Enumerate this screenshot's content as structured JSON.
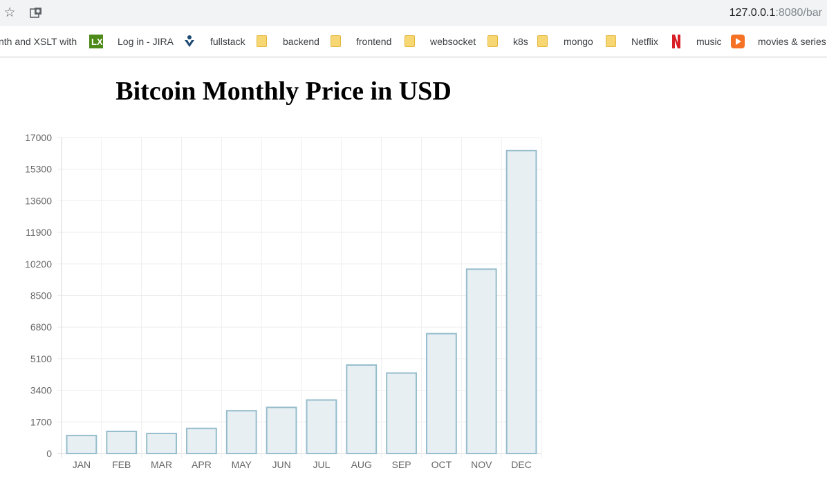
{
  "browser": {
    "url_host": "127.0.0.1",
    "url_rest": ":8080/bar",
    "icons": [
      "star-icon",
      "site-info-icon"
    ]
  },
  "bookmarks": [
    {
      "label": "nth and XSLT with",
      "icon": "none"
    },
    {
      "label": "Log in - JIRA",
      "icon": "lx-icon"
    },
    {
      "label": "fullstack",
      "icon": "jira-icon"
    },
    {
      "label": "backend",
      "icon": "folder-icon"
    },
    {
      "label": "frontend",
      "icon": "folder-icon"
    },
    {
      "label": "websocket",
      "icon": "folder-icon"
    },
    {
      "label": "k8s",
      "icon": "folder-icon"
    },
    {
      "label": "mongo",
      "icon": "folder-icon"
    },
    {
      "label": "Netflix",
      "icon": "folder-icon"
    },
    {
      "label": "music",
      "icon": "netflix-icon"
    },
    {
      "label": "movies & series",
      "icon": "music-icon"
    }
  ],
  "chart_data": {
    "type": "bar",
    "title": "Bitcoin Monthly Price in USD",
    "xlabel": "",
    "ylabel": "",
    "categories": [
      "JAN",
      "FEB",
      "MAR",
      "APR",
      "MAY",
      "JUN",
      "JUL",
      "AUG",
      "SEP",
      "OCT",
      "NOV",
      "DEC"
    ],
    "values": [
      970,
      1190,
      1080,
      1350,
      2300,
      2480,
      2880,
      4760,
      4330,
      6450,
      9920,
      16300
    ],
    "ylim": [
      0,
      17000
    ],
    "yticks": [
      0,
      1700,
      3400,
      5100,
      6800,
      8500,
      10200,
      11900,
      13600,
      15300,
      17000
    ],
    "grid": true,
    "legend": "none",
    "bar_fill": "#e7eff2",
    "bar_stroke": "#96bdcd",
    "grid_color": "#eeeeee"
  }
}
